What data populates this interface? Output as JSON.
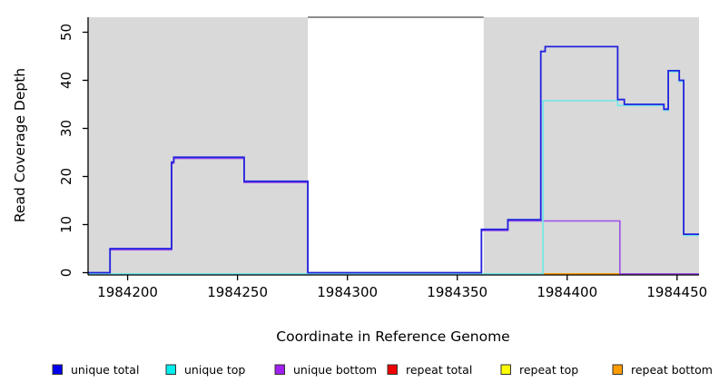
{
  "figure": {
    "background": "#FFFFFF",
    "shaded_region_color": "#D9D9D9",
    "axis_color": "#000000",
    "box_gap_border_color": "#666666"
  },
  "chart_data": {
    "type": "line",
    "step": true,
    "title": "",
    "xlabel": "Coordinate in Reference Genome",
    "ylabel": "Read Coverage Depth",
    "xlim": [
      1984182,
      1984460
    ],
    "ylim": [
      0,
      53
    ],
    "xticks": [
      1984200,
      1984250,
      1984300,
      1984350,
      1984400,
      1984450
    ],
    "yticks": [
      0,
      10,
      20,
      30,
      40,
      50
    ],
    "grid": false,
    "legend_position": "bottom",
    "shaded_regions": [
      {
        "from": 1984182,
        "to": 1984282
      },
      {
        "from": 1984362,
        "to": 1984460
      }
    ],
    "baseline_segments": [
      {
        "from": 1984182,
        "to": 1984389,
        "color": "#94D69C"
      },
      {
        "from": 1984389,
        "to": 1984424,
        "color": "#FF8C1A"
      },
      {
        "from": 1984424,
        "to": 1984460,
        "color": "#D94F6E"
      }
    ],
    "series": [
      {
        "name": "repeat total",
        "color": "#DD0000",
        "offset": 1.5,
        "points": [
          [
            1984182,
            0
          ],
          [
            1984460,
            0
          ]
        ]
      },
      {
        "name": "repeat top",
        "color": "#F5E900",
        "offset": 1.5,
        "points": [
          [
            1984182,
            0
          ],
          [
            1984460,
            0
          ]
        ]
      },
      {
        "name": "repeat bottom",
        "color": "#FF9D00",
        "offset": 1.5,
        "points": [
          [
            1984182,
            0
          ],
          [
            1984460,
            0
          ]
        ]
      },
      {
        "name": "unique bottom",
        "color": "#9C4FE8",
        "offset": 1.3,
        "points": [
          [
            1984182,
            0
          ],
          [
            1984192,
            0
          ],
          [
            1984192,
            5
          ],
          [
            1984220,
            5
          ],
          [
            1984220,
            23
          ],
          [
            1984221,
            23
          ],
          [
            1984221,
            24
          ],
          [
            1984253,
            24
          ],
          [
            1984253,
            19
          ],
          [
            1984282,
            19
          ],
          [
            1984282,
            0
          ],
          [
            1984361,
            0
          ],
          [
            1984361,
            9
          ],
          [
            1984373,
            9
          ],
          [
            1984373,
            11
          ],
          [
            1984424,
            11
          ],
          [
            1984424,
            0
          ],
          [
            1984460,
            0
          ]
        ]
      },
      {
        "name": "unique top",
        "color": "#6FE8E8",
        "offset": 1.3,
        "points": [
          [
            1984182,
            0
          ],
          [
            1984389,
            0
          ],
          [
            1984389,
            36
          ],
          [
            1984423,
            36
          ],
          [
            1984423,
            35
          ],
          [
            1984426,
            35
          ],
          [
            1984444,
            35
          ],
          [
            1984444,
            34
          ],
          [
            1984446,
            34
          ],
          [
            1984446,
            42
          ],
          [
            1984451,
            42
          ],
          [
            1984451,
            40
          ],
          [
            1984453,
            40
          ],
          [
            1984453,
            8
          ],
          [
            1984460,
            8
          ]
        ]
      },
      {
        "name": "unique total",
        "color": "#2222DE",
        "offset": 0,
        "points": [
          [
            1984182,
            0
          ],
          [
            1984192,
            0
          ],
          [
            1984192,
            5
          ],
          [
            1984220,
            5
          ],
          [
            1984220,
            23
          ],
          [
            1984221,
            23
          ],
          [
            1984221,
            24
          ],
          [
            1984253,
            24
          ],
          [
            1984253,
            19
          ],
          [
            1984282,
            19
          ],
          [
            1984282,
            0
          ],
          [
            1984361,
            0
          ],
          [
            1984361,
            9
          ],
          [
            1984373,
            9
          ],
          [
            1984373,
            11
          ],
          [
            1984388,
            11
          ],
          [
            1984388,
            46
          ],
          [
            1984390,
            46
          ],
          [
            1984390,
            47
          ],
          [
            1984423,
            47
          ],
          [
            1984423,
            36
          ],
          [
            1984426,
            36
          ],
          [
            1984426,
            35
          ],
          [
            1984444,
            35
          ],
          [
            1984444,
            34
          ],
          [
            1984446,
            34
          ],
          [
            1984446,
            42
          ],
          [
            1984451,
            42
          ],
          [
            1984451,
            40
          ],
          [
            1984453,
            40
          ],
          [
            1984453,
            8
          ],
          [
            1984460,
            8
          ]
        ]
      }
    ],
    "legend": {
      "items": [
        {
          "label": "unique total",
          "color": "#0000EE"
        },
        {
          "label": "unique top",
          "color": "#00EEEE"
        },
        {
          "label": "unique bottom",
          "color": "#A020F0"
        },
        {
          "label": "repeat total",
          "color": "#EE0000"
        },
        {
          "label": "repeat top",
          "color": "#FFFF00"
        },
        {
          "label": "repeat bottom",
          "color": "#FF9D00"
        }
      ]
    }
  }
}
